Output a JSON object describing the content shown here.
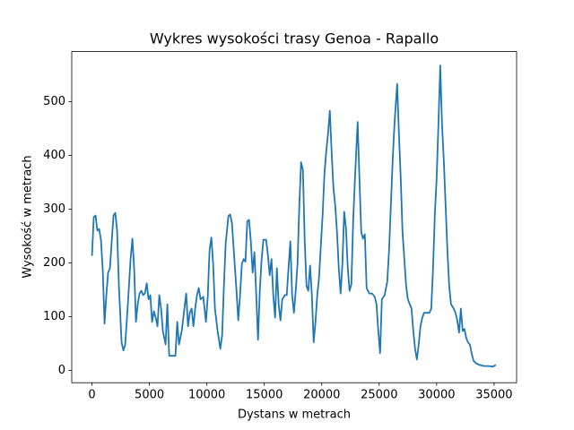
{
  "chart_data": {
    "type": "line",
    "title": "Wykres wysokości trasy Genoa - Rapallo",
    "x_label": "Dystans w metrach",
    "y_label": "Wysokość w metrach",
    "color": "#1f77b4",
    "grid": false,
    "xlim": [
      -1760,
      36960
    ],
    "ylim": [
      -23,
      593
    ],
    "xticks": [
      0,
      5000,
      10000,
      15000,
      20000,
      25000,
      30000,
      35000
    ],
    "yticks": [
      0,
      100,
      200,
      300,
      400,
      500
    ],
    "x": [
      0,
      156,
      313,
      469,
      625,
      781,
      938,
      1094,
      1250,
      1406,
      1563,
      1719,
      1875,
      2031,
      2188,
      2344,
      2578,
      2734,
      2891,
      3125,
      3359,
      3516,
      3672,
      3828,
      3984,
      4141,
      4297,
      4453,
      4609,
      4766,
      4922,
      5078,
      5234,
      5391,
      5547,
      5703,
      5859,
      6016,
      6172,
      6406,
      6563,
      6719,
      7031,
      7266,
      7422,
      7578,
      7813,
      8047,
      8203,
      8359,
      8516,
      8672,
      8828,
      8984,
      9141,
      9297,
      9453,
      9688,
      9922,
      10078,
      10234,
      10391,
      10547,
      10703,
      10938,
      11172,
      11328,
      11484,
      11641,
      11875,
      12031,
      12188,
      12344,
      12578,
      12734,
      12891,
      13047,
      13203,
      13359,
      13516,
      13672,
      13828,
      13984,
      14141,
      14297,
      14453,
      14609,
      14766,
      14922,
      15156,
      15313,
      15469,
      15625,
      15781,
      15938,
      16094,
      16250,
      16406,
      16563,
      16797,
      16953,
      17109,
      17266,
      17422,
      17578,
      17734,
      17891,
      18047,
      18203,
      18359,
      18516,
      18672,
      18828,
      18984,
      19141,
      19297,
      19453,
      19609,
      19766,
      19922,
      20078,
      20234,
      20391,
      20547,
      20703,
      20859,
      21016,
      21172,
      21328,
      21484,
      21641,
      21797,
      21953,
      22109,
      22266,
      22422,
      22578,
      22734,
      22891,
      23125,
      23281,
      23438,
      23594,
      23750,
      23906,
      24141,
      24375,
      24609,
      24766,
      24922,
      25078,
      25234,
      25469,
      25703,
      25859,
      26016,
      26172,
      26328,
      26563,
      26719,
      26875,
      27031,
      27188,
      27344,
      27500,
      27656,
      27813,
      27969,
      28125,
      28281,
      28438,
      28594,
      28750,
      28906,
      29141,
      29375,
      29531,
      29688,
      29844,
      30000,
      30156,
      30313,
      30469,
      30625,
      30781,
      30938,
      31094,
      31250,
      31484,
      31641,
      31797,
      31953,
      32109,
      32266,
      32422,
      32578,
      32734,
      32891,
      33047,
      33203,
      33438,
      33750,
      34141,
      34531,
      34922,
      35156
    ],
    "values": [
      213,
      285,
      288,
      260,
      263,
      243,
      187,
      87,
      140,
      182,
      190,
      240,
      288,
      293,
      260,
      157,
      52,
      37,
      48,
      123,
      207,
      245,
      190,
      90,
      123,
      143,
      148,
      140,
      143,
      162,
      132,
      140,
      90,
      110,
      98,
      82,
      140,
      115,
      73,
      48,
      123,
      27,
      27,
      27,
      90,
      48,
      73,
      115,
      143,
      82,
      107,
      115,
      82,
      115,
      140,
      153,
      132,
      137,
      90,
      137,
      223,
      247,
      198,
      115,
      73,
      40,
      65,
      157,
      237,
      287,
      290,
      273,
      223,
      148,
      93,
      140,
      198,
      207,
      202,
      277,
      280,
      240,
      182,
      220,
      140,
      57,
      148,
      207,
      243,
      243,
      215,
      177,
      207,
      140,
      98,
      190,
      123,
      93,
      132,
      140,
      140,
      190,
      240,
      140,
      107,
      148,
      198,
      307,
      387,
      373,
      243,
      157,
      148,
      195,
      140,
      52,
      90,
      140,
      173,
      232,
      290,
      365,
      407,
      440,
      483,
      407,
      340,
      307,
      257,
      190,
      143,
      198,
      295,
      265,
      190,
      148,
      160,
      277,
      357,
      462,
      357,
      257,
      245,
      253,
      153,
      143,
      143,
      137,
      123,
      73,
      32,
      132,
      140,
      165,
      223,
      307,
      390,
      457,
      533,
      440,
      357,
      257,
      207,
      157,
      132,
      123,
      115,
      73,
      40,
      20,
      48,
      82,
      98,
      107,
      107,
      107,
      115,
      190,
      290,
      357,
      457,
      567,
      457,
      390,
      307,
      223,
      157,
      123,
      115,
      107,
      93,
      70,
      115,
      73,
      77,
      60,
      52,
      48,
      32,
      18,
      13,
      10,
      8,
      8,
      7,
      10
    ]
  }
}
